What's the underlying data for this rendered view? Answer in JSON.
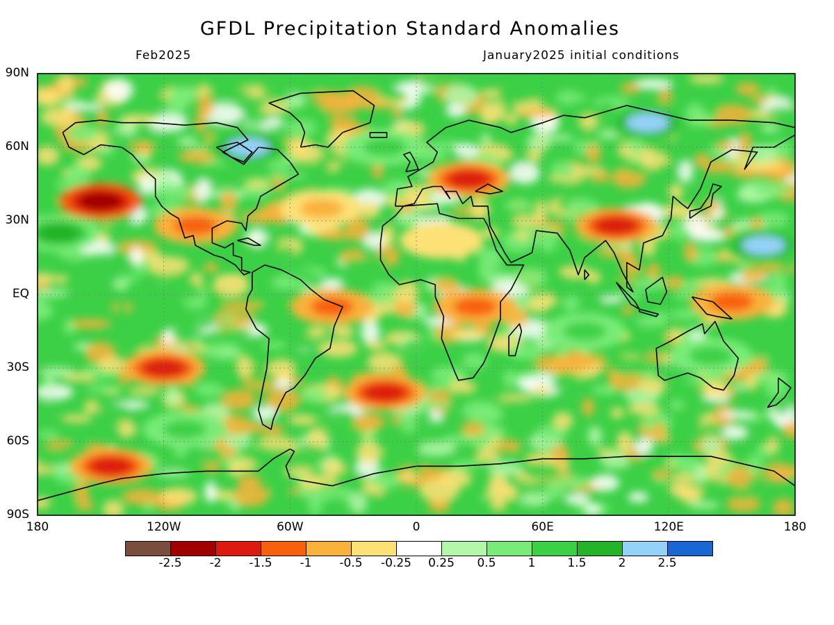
{
  "header": {
    "title": "GFDL Precipitation Standard Anomalies",
    "valid_month": "Feb2025",
    "init_conditions": "January2025 initial conditions"
  },
  "axes": {
    "lat_labels": [
      "90N",
      "60N",
      "30N",
      "EQ",
      "30S",
      "60S",
      "90S"
    ],
    "lon_labels": [
      "180",
      "120W",
      "60W",
      "0",
      "60E",
      "120E",
      "180"
    ]
  },
  "colorbar": {
    "colors": [
      "#7a4d3e",
      "#a00000",
      "#dd1a10",
      "#f86010",
      "#f9b13b",
      "#fde176",
      "#ffffff",
      "#b3f7a8",
      "#79ec78",
      "#3cd047",
      "#24b328",
      "#94d2fa",
      "#1a66d4"
    ],
    "labels": [
      "-2.5",
      "-2",
      "-1.5",
      "-1",
      "-0.5",
      "-0.25",
      "0.25",
      "0.5",
      "1",
      "1.5",
      "2",
      "2.5"
    ]
  },
  "anomaly_regions": [
    {
      "name": "northeast-pacific-dry",
      "lon": -150,
      "lat": 38,
      "level": -2
    },
    {
      "name": "west-us-dry",
      "lon": -105,
      "lat": 28,
      "level": -1
    },
    {
      "name": "north-atlantic-dry",
      "lon": -45,
      "lat": 35,
      "level": -0.5
    },
    {
      "name": "europe-dry",
      "lon": 25,
      "lat": 47,
      "level": -1.5
    },
    {
      "name": "sahara-dry",
      "lon": 12,
      "lat": 22,
      "level": -0.25
    },
    {
      "name": "central-africa-dry",
      "lon": 28,
      "lat": -5,
      "level": -1
    },
    {
      "name": "south-pacific-dry",
      "lon": -120,
      "lat": -30,
      "level": -1.5
    },
    {
      "name": "south-atlantic-dry",
      "lon": -15,
      "lat": -40,
      "level": -1.5
    },
    {
      "name": "equatorial-atlantic-dry",
      "lon": -40,
      "lat": -5,
      "level": -1
    },
    {
      "name": "west-pacific-dry",
      "lon": 150,
      "lat": -3,
      "level": -1
    },
    {
      "name": "bay-of-bengal-dry",
      "lon": 95,
      "lat": 28,
      "level": -1.5
    },
    {
      "name": "antarctic-coast-dry",
      "lon": -145,
      "lat": -70,
      "level": -1.5
    },
    {
      "name": "north-pacific-wet",
      "lon": -170,
      "lat": 25,
      "level": 1.5
    },
    {
      "name": "siberia-wet",
      "lon": 110,
      "lat": 70,
      "level": 2
    },
    {
      "name": "north-atlantic-wet",
      "lon": -15,
      "lat": 60,
      "level": 1
    },
    {
      "name": "indian-ocean-wet",
      "lon": 80,
      "lat": -15,
      "level": 1
    },
    {
      "name": "southern-ocean-wet",
      "lon": -110,
      "lat": -55,
      "level": 1
    },
    {
      "name": "west-pacific-wet",
      "lon": 165,
      "lat": 20,
      "level": 2
    },
    {
      "name": "australia-wet",
      "lon": 140,
      "lat": -25,
      "level": 1
    },
    {
      "name": "hudson-bay-wet",
      "lon": -80,
      "lat": 60,
      "level": 2
    }
  ]
}
